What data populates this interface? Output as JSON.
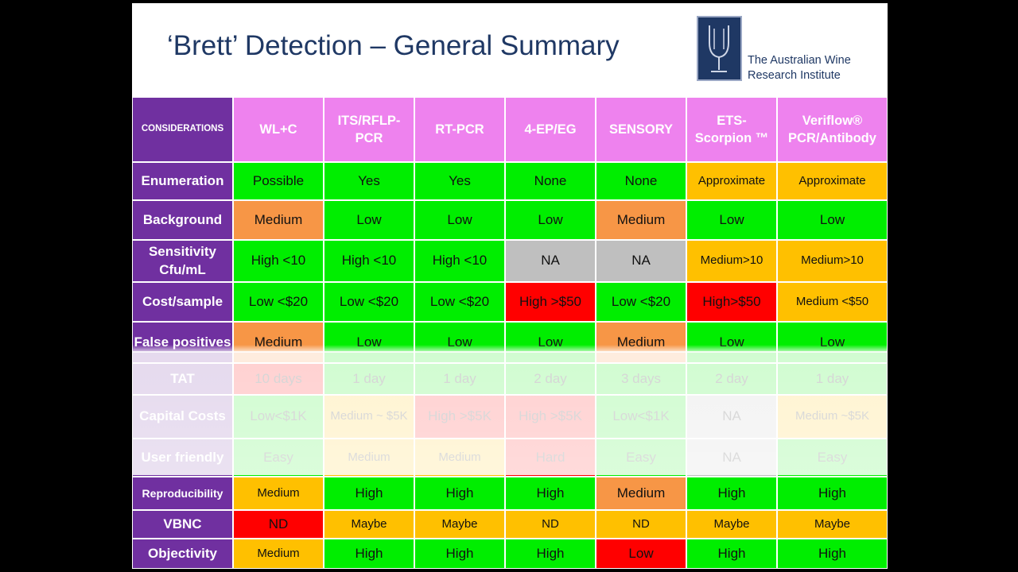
{
  "slide": {
    "title": "‘Brett’ Detection – General Summary",
    "logo": {
      "line1": "The Australian Wine",
      "line2": "Research Institute"
    }
  },
  "table": {
    "corner": "CONSIDERATIONS",
    "columns": [
      {
        "line1": "WL+C",
        "line2": ""
      },
      {
        "line1": "ITS/RFLP-",
        "line2": "PCR"
      },
      {
        "line1": "RT-PCR",
        "line2": ""
      },
      {
        "line1": "4-EP/EG",
        "line2": ""
      },
      {
        "line1": "SENSORY",
        "line2": ""
      },
      {
        "line1": "ETS-",
        "line2": "Scorpion ™"
      },
      {
        "line1": "Veriflow®",
        "line2": "PCR/Antibody"
      }
    ],
    "rows": [
      {
        "label": "Enumeration",
        "cells": [
          {
            "text": "Possible",
            "color": "g"
          },
          {
            "text": "Yes",
            "color": "g"
          },
          {
            "text": "Yes",
            "color": "g"
          },
          {
            "text": "None",
            "color": "g"
          },
          {
            "text": "None",
            "color": "g"
          },
          {
            "text": "Approximate",
            "color": "o"
          },
          {
            "text": "Approximate",
            "color": "o"
          }
        ]
      },
      {
        "label": "Background",
        "cells": [
          {
            "text": "Medium",
            "color": "orange"
          },
          {
            "text": "Low",
            "color": "g"
          },
          {
            "text": "Low",
            "color": "g"
          },
          {
            "text": "Low",
            "color": "g"
          },
          {
            "text": "Medium",
            "color": "orange"
          },
          {
            "text": "Low",
            "color": "g"
          },
          {
            "text": "Low",
            "color": "g"
          }
        ]
      },
      {
        "label": "Sensitivity Cfu/mL",
        "cells": [
          {
            "text": "High <10",
            "color": "g"
          },
          {
            "text": "High <10",
            "color": "g"
          },
          {
            "text": "High <10",
            "color": "g"
          },
          {
            "text": "NA",
            "color": "gray"
          },
          {
            "text": "NA",
            "color": "gray"
          },
          {
            "text": "Medium>10",
            "color": "o"
          },
          {
            "text": "Medium>10",
            "color": "o"
          }
        ]
      },
      {
        "label": "Cost/sample",
        "cells": [
          {
            "text": "Low <$20",
            "color": "g"
          },
          {
            "text": "Low <$20",
            "color": "g"
          },
          {
            "text": "Low <$20",
            "color": "g"
          },
          {
            "text": "High >$50",
            "color": "r"
          },
          {
            "text": "Low <$20",
            "color": "g"
          },
          {
            "text": "High>$50",
            "color": "r"
          },
          {
            "text": "Medium <$50",
            "color": "o"
          }
        ]
      },
      {
        "label": "False positives",
        "cells": [
          {
            "text": "Medium",
            "color": "orange"
          },
          {
            "text": "Low",
            "color": "g"
          },
          {
            "text": "Low",
            "color": "g"
          },
          {
            "text": "Low",
            "color": "g"
          },
          {
            "text": "Medium",
            "color": "orange"
          },
          {
            "text": "Low",
            "color": "g"
          },
          {
            "text": "Low",
            "color": "g"
          }
        ]
      },
      {
        "label": "TAT",
        "cells": [
          {
            "text": "10 days",
            "color": "r"
          },
          {
            "text": "1 day",
            "color": "g"
          },
          {
            "text": "1 day",
            "color": "g"
          },
          {
            "text": "2 day",
            "color": "g"
          },
          {
            "text": "3 days",
            "color": "g"
          },
          {
            "text": "2 day",
            "color": "g"
          },
          {
            "text": "1 day",
            "color": "g"
          }
        ]
      },
      {
        "label": "Capital Costs",
        "cells": [
          {
            "text": "Low<$1K",
            "color": "g"
          },
          {
            "text": "Medium ~ $5K",
            "color": "o"
          },
          {
            "text": "High >$5K",
            "color": "r"
          },
          {
            "text": "High >$5K",
            "color": "r"
          },
          {
            "text": "Low<$1K",
            "color": "g"
          },
          {
            "text": "NA",
            "color": "gray"
          },
          {
            "text": "Medium ~$5K",
            "color": "o"
          }
        ]
      },
      {
        "label": "User friendly",
        "cells": [
          {
            "text": "Easy",
            "color": "g"
          },
          {
            "text": "Medium",
            "color": "o"
          },
          {
            "text": "Medium",
            "color": "o"
          },
          {
            "text": "Hard",
            "color": "r"
          },
          {
            "text": "Easy",
            "color": "g"
          },
          {
            "text": "NA",
            "color": "gray"
          },
          {
            "text": "Easy",
            "color": "g"
          }
        ]
      },
      {
        "label": "Reproducibility",
        "cells": [
          {
            "text": "Medium",
            "color": "o"
          },
          {
            "text": "High",
            "color": "g"
          },
          {
            "text": "High",
            "color": "g"
          },
          {
            "text": "High",
            "color": "g"
          },
          {
            "text": "Medium",
            "color": "orange"
          },
          {
            "text": "High",
            "color": "g"
          },
          {
            "text": "High",
            "color": "g"
          }
        ]
      },
      {
        "label": "VBNC",
        "cells": [
          {
            "text": "ND",
            "color": "r"
          },
          {
            "text": "Maybe",
            "color": "o"
          },
          {
            "text": "Maybe",
            "color": "o"
          },
          {
            "text": "ND",
            "color": "o"
          },
          {
            "text": "ND",
            "color": "o"
          },
          {
            "text": "Maybe",
            "color": "o"
          },
          {
            "text": "Maybe",
            "color": "o"
          }
        ]
      },
      {
        "label": "Objectivity",
        "cells": [
          {
            "text": "Medium",
            "color": "o"
          },
          {
            "text": "High",
            "color": "g"
          },
          {
            "text": "High",
            "color": "g"
          },
          {
            "text": "High",
            "color": "g"
          },
          {
            "text": "Low",
            "color": "r"
          },
          {
            "text": "High",
            "color": "g"
          },
          {
            "text": "High",
            "color": "g"
          }
        ]
      }
    ]
  }
}
